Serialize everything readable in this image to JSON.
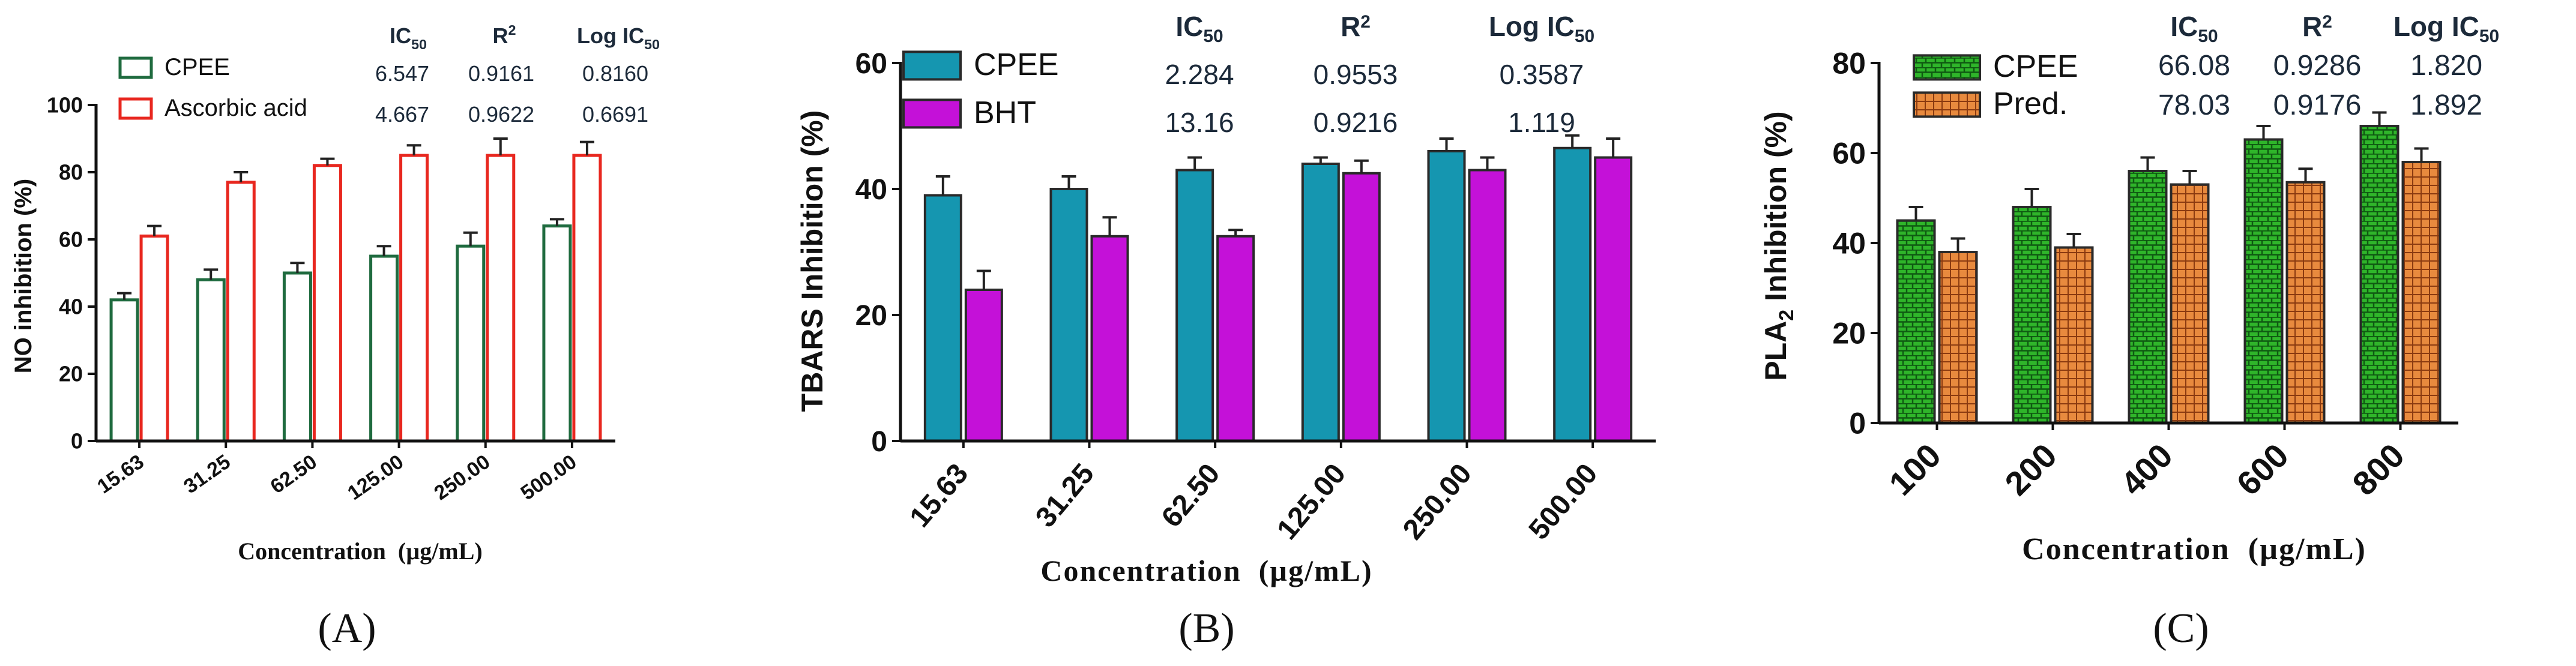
{
  "figure": {
    "panels": [
      "(A)",
      "(B)",
      "(C)"
    ]
  },
  "chart_data": [
    {
      "panel": "A",
      "type": "bar",
      "categories": [
        "15.63",
        "31.25",
        "62.50",
        "125.00",
        "250.00",
        "500.00"
      ],
      "series": [
        {
          "name": "CPEE",
          "values": [
            42,
            48,
            50,
            55,
            58,
            64
          ],
          "errors": [
            2,
            3,
            3,
            3,
            4,
            2
          ],
          "color": "#1f6b3f",
          "fill": "none"
        },
        {
          "name": "Ascorbic acid",
          "values": [
            61,
            77,
            82,
            85,
            85,
            85
          ],
          "errors": [
            3,
            3,
            2,
            3,
            5,
            4
          ],
          "color": "#e8271f",
          "fill": "none"
        }
      ],
      "xlabel": "Concentration  (µg/mL)",
      "ylabel": "NO inhibition (%)",
      "ylim": [
        0,
        100
      ],
      "yticks": [
        0,
        20,
        40,
        60,
        80,
        100
      ],
      "legend_position": "top-left",
      "stats_table": {
        "headers": [
          "IC",
          "R",
          "Log IC"
        ],
        "header_subs": [
          "50",
          "2",
          "50"
        ],
        "rows": [
          [
            "6.547",
            "0.9161",
            "0.8160"
          ],
          [
            "4.667",
            "0.9622",
            "0.6691"
          ]
        ]
      }
    },
    {
      "panel": "B",
      "type": "bar",
      "categories": [
        "15.63",
        "31.25",
        "62.50",
        "125.00",
        "250.00",
        "500.00"
      ],
      "series": [
        {
          "name": "CPEE",
          "values": [
            39,
            40,
            43,
            44,
            46,
            46.5
          ],
          "errors": [
            3,
            2,
            2,
            1,
            2,
            2
          ],
          "color": "#1596b0"
        },
        {
          "name": "BHT",
          "values": [
            24,
            32.5,
            32.5,
            42.5,
            43,
            45
          ],
          "errors": [
            3,
            3,
            1,
            2,
            2,
            3
          ],
          "color": "#c411d8"
        }
      ],
      "xlabel": "Concentration  (µg/mL)",
      "ylabel": "TBARS Inhibition (%)",
      "ylim": [
        0,
        60
      ],
      "yticks": [
        0,
        20,
        40,
        60
      ],
      "legend_position": "top-left",
      "stats_table": {
        "headers": [
          "IC",
          "R",
          "Log IC"
        ],
        "header_subs": [
          "50",
          "2",
          "50"
        ],
        "rows": [
          [
            "2.284",
            "0.9553",
            "0.3587"
          ],
          [
            "13.16",
            "0.9216",
            "1.119"
          ]
        ]
      }
    },
    {
      "panel": "C",
      "type": "bar",
      "categories": [
        "100",
        "200",
        "400",
        "600",
        "800"
      ],
      "series": [
        {
          "name": "CPEE",
          "values": [
            45,
            48,
            56,
            63,
            66
          ],
          "errors": [
            3,
            4,
            3,
            3,
            3
          ],
          "color": "#2fb52a",
          "pattern": "brick-green"
        },
        {
          "name": "Pred.",
          "values": [
            38,
            39,
            53,
            53.5,
            58
          ],
          "errors": [
            3,
            3,
            3,
            3,
            3
          ],
          "color": "#e8883a",
          "pattern": "check-orange"
        }
      ],
      "xlabel": "Concentration  (µg/mL)",
      "ylabel": "PLA",
      "ylabel_sub": "2",
      "ylabel_tail": " Inhibition (%)",
      "ylim": [
        0,
        80
      ],
      "yticks": [
        0,
        20,
        40,
        60,
        80
      ],
      "legend_position": "top-left",
      "stats_table": {
        "headers": [
          "IC",
          "R",
          "Log IC"
        ],
        "header_subs": [
          "50",
          "2",
          "50"
        ],
        "rows": [
          [
            "66.08",
            "0.9286",
            "1.820"
          ],
          [
            "78.03",
            "0.9176",
            "1.892"
          ]
        ]
      }
    }
  ]
}
